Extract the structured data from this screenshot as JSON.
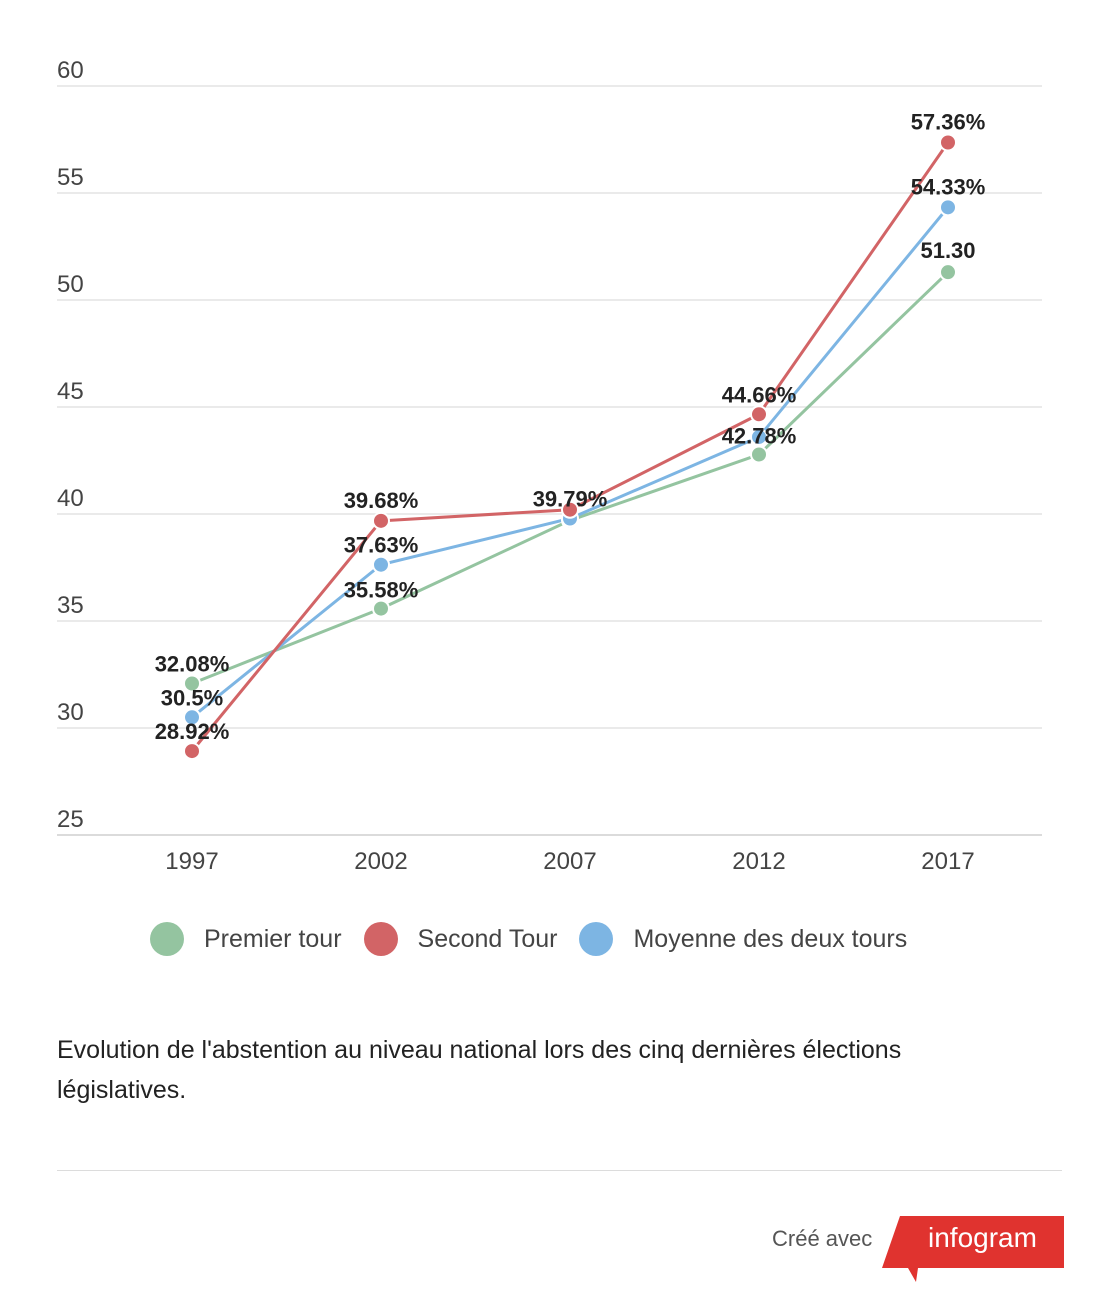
{
  "chart_data": {
    "type": "line",
    "categories": [
      "1997",
      "2002",
      "2007",
      "2012",
      "2017"
    ],
    "ylim": [
      25,
      60
    ],
    "yticks": [
      25,
      30,
      35,
      40,
      45,
      50,
      55,
      60
    ],
    "grid": true,
    "legend_position": "bottom",
    "series": [
      {
        "name": "Premier tour",
        "color": "#94c4a0",
        "values": [
          32.08,
          35.58,
          39.7,
          42.78,
          51.3
        ],
        "labels": [
          "32.08%",
          "35.58%",
          "",
          "42.78%",
          "51.30"
        ]
      },
      {
        "name": "Second Tour",
        "color": "#d26466",
        "values": [
          28.92,
          39.68,
          40.2,
          44.66,
          57.36
        ],
        "labels": [
          "28.92%",
          "39.68%",
          "",
          "44.66%",
          "57.36%"
        ]
      },
      {
        "name": "Moyenne des deux tours",
        "color": "#7db5e3",
        "values": [
          30.5,
          37.63,
          39.79,
          43.6,
          54.33
        ],
        "labels": [
          "30.5%",
          "37.63%",
          "39.79%",
          "",
          "54.33%"
        ]
      }
    ]
  },
  "caption": "Evolution de l'abstention au niveau national lors des cinq dernières élections législatives.",
  "credit": {
    "prefix": "Créé avec",
    "brand": "infogram",
    "brand_color": "#e0332f"
  }
}
